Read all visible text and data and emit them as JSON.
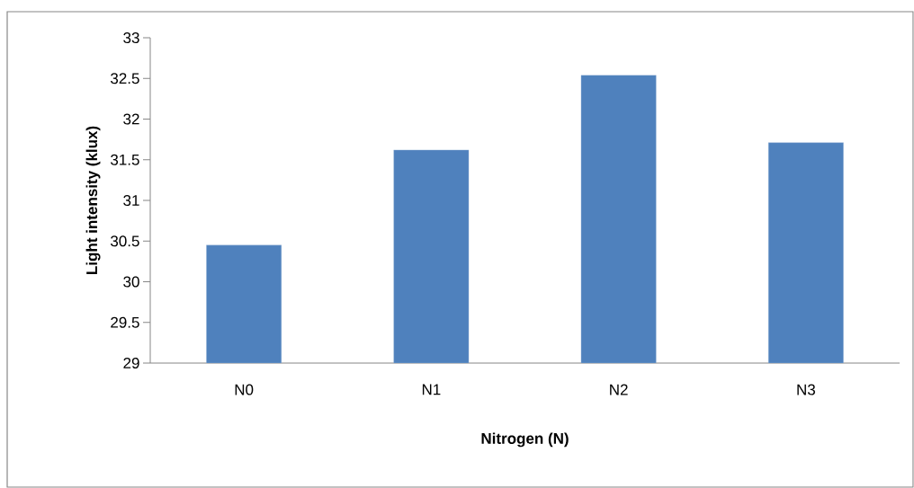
{
  "chart_data": {
    "type": "bar",
    "xlabel": "Nitrogen (N)",
    "ylabel": "Light intensity (klux)",
    "categories": [
      "N0",
      "N1",
      "N2",
      "N3"
    ],
    "values": [
      30.45,
      31.62,
      32.54,
      31.71
    ],
    "color": "#4f81bd",
    "ylim": [
      29,
      33
    ],
    "yticks": [
      29,
      29.5,
      30,
      30.5,
      31,
      31.5,
      32,
      32.5,
      33
    ]
  }
}
